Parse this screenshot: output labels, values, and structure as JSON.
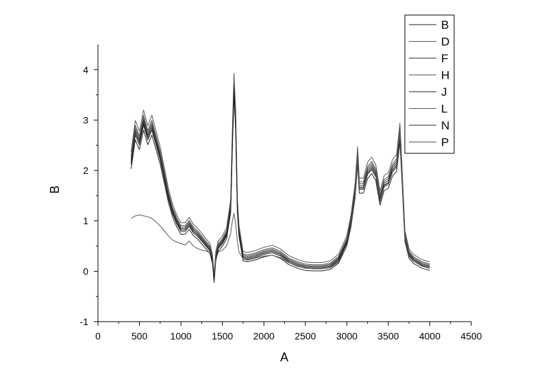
{
  "chart_data": {
    "type": "line",
    "xlabel": "A",
    "ylabel": "B",
    "xlim": [
      0,
      4500
    ],
    "ylim": [
      -1,
      4.5
    ],
    "xticks": [
      0,
      500,
      1000,
      1500,
      2000,
      2500,
      3000,
      3500,
      4000,
      4500
    ],
    "yticks": [
      -1,
      0,
      1,
      2,
      3,
      4
    ],
    "grid": false,
    "legend_position": "top-right",
    "series": [
      {
        "name": "B",
        "offset": 0.0,
        "scale": 1.0,
        "x": [
          400,
          450,
          500,
          550,
          600,
          650,
          700,
          750,
          800,
          850,
          900,
          950,
          1000,
          1050,
          1100,
          1150,
          1200,
          1250,
          1300,
          1350,
          1380,
          1400,
          1420,
          1450,
          1500,
          1550,
          1600,
          1620,
          1640,
          1660,
          1680,
          1700,
          1750,
          1800,
          1900,
          2000,
          2100,
          2200,
          2300,
          2400,
          2500,
          2600,
          2700,
          2800,
          2900,
          3000,
          3050,
          3100,
          3130,
          3150,
          3200,
          3250,
          3300,
          3350,
          3400,
          3450,
          3500,
          3550,
          3600,
          3640,
          3660,
          3700,
          3750,
          3800,
          3900,
          4000
        ],
        "values": [
          2.2,
          2.8,
          2.6,
          3.0,
          2.7,
          2.9,
          2.6,
          2.3,
          1.9,
          1.5,
          1.2,
          1.0,
          0.85,
          0.85,
          0.95,
          0.82,
          0.75,
          0.65,
          0.55,
          0.45,
          0.25,
          -0.15,
          0.3,
          0.5,
          0.6,
          0.75,
          1.3,
          2.6,
          3.7,
          3.0,
          1.3,
          0.8,
          0.3,
          0.28,
          0.32,
          0.38,
          0.42,
          0.35,
          0.22,
          0.15,
          0.1,
          0.09,
          0.09,
          0.12,
          0.25,
          0.6,
          1.0,
          1.6,
          2.3,
          1.7,
          1.7,
          2.0,
          2.1,
          1.95,
          1.45,
          1.75,
          1.8,
          2.05,
          2.15,
          2.75,
          2.1,
          0.7,
          0.35,
          0.25,
          0.15,
          0.1
        ]
      },
      {
        "name": "D",
        "offset": 0.04,
        "scale": 1.02,
        "x": [
          400,
          450,
          500,
          550,
          600,
          650,
          700,
          750,
          800,
          850,
          900,
          950,
          1000,
          1050,
          1100,
          1150,
          1200,
          1250,
          1300,
          1350,
          1380,
          1400,
          1420,
          1450,
          1500,
          1550,
          1600,
          1620,
          1640,
          1660,
          1680,
          1700,
          1750,
          1800,
          1900,
          2000,
          2100,
          2200,
          2300,
          2400,
          2500,
          2600,
          2700,
          2800,
          2900,
          3000,
          3050,
          3100,
          3130,
          3150,
          3200,
          3250,
          3300,
          3350,
          3400,
          3450,
          3500,
          3550,
          3600,
          3640,
          3660,
          3700,
          3750,
          3800,
          3900,
          4000
        ],
        "values": [
          2.2,
          2.8,
          2.6,
          3.0,
          2.7,
          2.9,
          2.6,
          2.3,
          1.9,
          1.5,
          1.2,
          1.0,
          0.85,
          0.85,
          0.95,
          0.82,
          0.75,
          0.65,
          0.55,
          0.45,
          0.25,
          -0.15,
          0.3,
          0.5,
          0.6,
          0.75,
          1.3,
          2.6,
          3.7,
          3.0,
          1.3,
          0.8,
          0.3,
          0.28,
          0.32,
          0.38,
          0.42,
          0.35,
          0.22,
          0.15,
          0.1,
          0.09,
          0.09,
          0.12,
          0.25,
          0.6,
          1.0,
          1.6,
          2.3,
          1.7,
          1.7,
          2.0,
          2.1,
          1.95,
          1.45,
          1.75,
          1.8,
          2.05,
          2.15,
          2.75,
          2.1,
          0.7,
          0.35,
          0.25,
          0.15,
          0.1
        ]
      },
      {
        "name": "F",
        "offset": -0.04,
        "scale": 0.98,
        "x": [
          400,
          450,
          500,
          550,
          600,
          650,
          700,
          750,
          800,
          850,
          900,
          950,
          1000,
          1050,
          1100,
          1150,
          1200,
          1250,
          1300,
          1350,
          1380,
          1400,
          1420,
          1450,
          1500,
          1550,
          1600,
          1620,
          1640,
          1660,
          1680,
          1700,
          1750,
          1800,
          1900,
          2000,
          2100,
          2200,
          2300,
          2400,
          2500,
          2600,
          2700,
          2800,
          2900,
          3000,
          3050,
          3100,
          3130,
          3150,
          3200,
          3250,
          3300,
          3350,
          3400,
          3450,
          3500,
          3550,
          3600,
          3640,
          3660,
          3700,
          3750,
          3800,
          3900,
          4000
        ],
        "values": [
          2.2,
          2.8,
          2.6,
          3.0,
          2.7,
          2.9,
          2.6,
          2.3,
          1.9,
          1.5,
          1.2,
          1.0,
          0.85,
          0.85,
          0.95,
          0.82,
          0.75,
          0.65,
          0.55,
          0.45,
          0.25,
          -0.15,
          0.3,
          0.5,
          0.6,
          0.75,
          1.3,
          2.6,
          3.7,
          3.0,
          1.3,
          0.8,
          0.3,
          0.28,
          0.32,
          0.38,
          0.42,
          0.35,
          0.22,
          0.15,
          0.1,
          0.09,
          0.09,
          0.12,
          0.25,
          0.6,
          1.0,
          1.6,
          2.3,
          1.7,
          1.7,
          2.0,
          2.1,
          1.95,
          1.45,
          1.75,
          1.8,
          2.05,
          2.15,
          2.75,
          2.1,
          0.7,
          0.35,
          0.25,
          0.15,
          0.1
        ]
      },
      {
        "name": "H",
        "offset": 0.08,
        "scale": 1.04,
        "x": [
          400,
          450,
          500,
          550,
          600,
          650,
          700,
          750,
          800,
          850,
          900,
          950,
          1000,
          1050,
          1100,
          1150,
          1200,
          1250,
          1300,
          1350,
          1380,
          1400,
          1420,
          1450,
          1500,
          1550,
          1600,
          1620,
          1640,
          1660,
          1680,
          1700,
          1750,
          1800,
          1900,
          2000,
          2100,
          2200,
          2300,
          2400,
          2500,
          2600,
          2700,
          2800,
          2900,
          3000,
          3050,
          3100,
          3130,
          3150,
          3200,
          3250,
          3300,
          3350,
          3400,
          3450,
          3500,
          3550,
          3600,
          3640,
          3660,
          3700,
          3750,
          3800,
          3900,
          4000
        ],
        "values": [
          2.2,
          2.8,
          2.6,
          3.0,
          2.7,
          2.9,
          2.6,
          2.3,
          1.9,
          1.5,
          1.2,
          1.0,
          0.85,
          0.85,
          0.95,
          0.82,
          0.75,
          0.65,
          0.55,
          0.45,
          0.25,
          -0.15,
          0.3,
          0.5,
          0.6,
          0.75,
          1.3,
          2.6,
          3.7,
          3.0,
          1.3,
          0.8,
          0.3,
          0.28,
          0.32,
          0.38,
          0.42,
          0.35,
          0.22,
          0.15,
          0.1,
          0.09,
          0.09,
          0.12,
          0.25,
          0.6,
          1.0,
          1.6,
          2.3,
          1.7,
          1.7,
          2.0,
          2.1,
          1.95,
          1.45,
          1.75,
          1.8,
          2.05,
          2.15,
          2.75,
          2.1,
          0.7,
          0.35,
          0.25,
          0.15,
          0.1
        ]
      },
      {
        "name": "J",
        "offset": -0.08,
        "scale": 0.96,
        "x": [
          400,
          450,
          500,
          550,
          600,
          650,
          700,
          750,
          800,
          850,
          900,
          950,
          1000,
          1050,
          1100,
          1150,
          1200,
          1250,
          1300,
          1350,
          1380,
          1400,
          1420,
          1450,
          1500,
          1550,
          1600,
          1620,
          1640,
          1660,
          1680,
          1700,
          1750,
          1800,
          1900,
          2000,
          2100,
          2200,
          2300,
          2400,
          2500,
          2600,
          2700,
          2800,
          2900,
          3000,
          3050,
          3100,
          3130,
          3150,
          3200,
          3250,
          3300,
          3350,
          3400,
          3450,
          3500,
          3550,
          3600,
          3640,
          3660,
          3700,
          3750,
          3800,
          3900,
          4000
        ],
        "values": [
          2.2,
          2.8,
          2.6,
          3.0,
          2.7,
          2.9,
          2.6,
          2.3,
          1.9,
          1.5,
          1.2,
          1.0,
          0.85,
          0.85,
          0.95,
          0.82,
          0.75,
          0.65,
          0.55,
          0.45,
          0.25,
          -0.15,
          0.3,
          0.5,
          0.6,
          0.75,
          1.3,
          2.6,
          3.7,
          3.0,
          1.3,
          0.8,
          0.3,
          0.28,
          0.32,
          0.38,
          0.42,
          0.35,
          0.22,
          0.15,
          0.1,
          0.09,
          0.09,
          0.12,
          0.25,
          0.6,
          1.0,
          1.6,
          2.3,
          1.7,
          1.7,
          2.0,
          2.1,
          1.95,
          1.45,
          1.75,
          1.8,
          2.05,
          2.15,
          2.75,
          2.1,
          0.7,
          0.35,
          0.25,
          0.15,
          0.1
        ]
      },
      {
        "name": "L",
        "offset": 0.02,
        "scale": 1.01,
        "x": [
          400,
          450,
          500,
          550,
          600,
          650,
          700,
          750,
          800,
          850,
          900,
          950,
          1000,
          1050,
          1100,
          1150,
          1200,
          1250,
          1300,
          1350,
          1380,
          1400,
          1420,
          1450,
          1500,
          1550,
          1600,
          1620,
          1640,
          1660,
          1680,
          1700,
          1750,
          1800,
          1900,
          2000,
          2100,
          2200,
          2300,
          2400,
          2500,
          2600,
          2700,
          2800,
          2900,
          3000,
          3050,
          3100,
          3130,
          3150,
          3200,
          3250,
          3300,
          3350,
          3400,
          3450,
          3500,
          3550,
          3600,
          3640,
          3660,
          3700,
          3750,
          3800,
          3900,
          4000
        ],
        "values": [
          2.2,
          2.8,
          2.6,
          3.0,
          2.7,
          2.9,
          2.6,
          2.3,
          1.9,
          1.5,
          1.2,
          1.0,
          0.85,
          0.85,
          0.95,
          0.82,
          0.75,
          0.65,
          0.55,
          0.45,
          0.25,
          -0.15,
          0.3,
          0.5,
          0.6,
          0.75,
          1.3,
          2.6,
          3.7,
          3.0,
          1.3,
          0.8,
          0.3,
          0.28,
          0.32,
          0.38,
          0.42,
          0.35,
          0.22,
          0.15,
          0.1,
          0.09,
          0.09,
          0.12,
          0.25,
          0.6,
          1.0,
          1.6,
          2.3,
          1.7,
          1.7,
          2.0,
          2.1,
          1.95,
          1.45,
          1.75,
          1.8,
          2.05,
          2.15,
          2.75,
          2.1,
          0.7,
          0.35,
          0.25,
          0.15,
          0.1
        ]
      },
      {
        "name": "N",
        "offset": -0.02,
        "scale": 0.99,
        "x": [
          400,
          450,
          500,
          550,
          600,
          650,
          700,
          750,
          800,
          850,
          900,
          950,
          1000,
          1050,
          1100,
          1150,
          1200,
          1250,
          1300,
          1350,
          1380,
          1400,
          1420,
          1450,
          1500,
          1550,
          1600,
          1620,
          1640,
          1660,
          1680,
          1700,
          1750,
          1800,
          1900,
          2000,
          2100,
          2200,
          2300,
          2400,
          2500,
          2600,
          2700,
          2800,
          2900,
          3000,
          3050,
          3100,
          3130,
          3150,
          3200,
          3250,
          3300,
          3350,
          3400,
          3450,
          3500,
          3550,
          3600,
          3640,
          3660,
          3700,
          3750,
          3800,
          3900,
          4000
        ],
        "values": [
          2.2,
          2.8,
          2.6,
          3.0,
          2.7,
          2.9,
          2.6,
          2.3,
          1.9,
          1.5,
          1.2,
          1.0,
          0.85,
          0.85,
          0.95,
          0.82,
          0.75,
          0.65,
          0.55,
          0.45,
          0.25,
          -0.15,
          0.3,
          0.5,
          0.6,
          0.75,
          1.3,
          2.6,
          3.7,
          3.0,
          1.3,
          0.8,
          0.3,
          0.28,
          0.32,
          0.38,
          0.42,
          0.35,
          0.22,
          0.15,
          0.1,
          0.09,
          0.09,
          0.12,
          0.25,
          0.6,
          1.0,
          1.6,
          2.3,
          1.7,
          1.7,
          2.0,
          2.1,
          1.95,
          1.45,
          1.75,
          1.8,
          2.05,
          2.15,
          2.75,
          2.1,
          0.7,
          0.35,
          0.25,
          0.15,
          0.1
        ]
      },
      {
        "name": "P",
        "x": [
          400,
          450,
          500,
          550,
          600,
          650,
          700,
          750,
          800,
          850,
          900,
          950,
          1000,
          1050,
          1100,
          1150,
          1200,
          1250,
          1300,
          1350,
          1380,
          1400,
          1420,
          1450,
          1500,
          1550,
          1600,
          1620,
          1640,
          1660,
          1680,
          1700,
          1750,
          1800,
          1900,
          2000,
          2100,
          2200,
          2300,
          2400,
          2500,
          2600,
          2700,
          2800,
          2900,
          3000,
          3050,
          3100,
          3130,
          3150,
          3200,
          3250,
          3300,
          3350,
          3400,
          3450,
          3500,
          3550,
          3600,
          3640,
          3660,
          3700,
          3750,
          3800,
          3900,
          4000
        ],
        "values": [
          1.05,
          1.1,
          1.12,
          1.1,
          1.08,
          1.05,
          0.98,
          0.9,
          0.8,
          0.7,
          0.62,
          0.58,
          0.55,
          0.52,
          0.6,
          0.5,
          0.45,
          0.42,
          0.4,
          0.38,
          0.3,
          -0.05,
          0.25,
          0.38,
          0.42,
          0.5,
          0.75,
          1.0,
          1.15,
          0.95,
          0.6,
          0.38,
          0.25,
          0.22,
          0.26,
          0.3,
          0.32,
          0.27,
          0.17,
          0.1,
          0.06,
          0.05,
          0.05,
          0.07,
          0.18,
          0.5,
          0.9,
          1.5,
          2.25,
          1.65,
          1.65,
          1.95,
          2.05,
          1.9,
          1.4,
          1.7,
          1.75,
          2.0,
          2.1,
          2.7,
          2.05,
          0.65,
          0.3,
          0.2,
          0.12,
          0.08
        ]
      }
    ]
  },
  "colors": {
    "axis": "#000000",
    "series_dark": "#222222",
    "series_light": "#555555",
    "legend_border": "#000000"
  }
}
